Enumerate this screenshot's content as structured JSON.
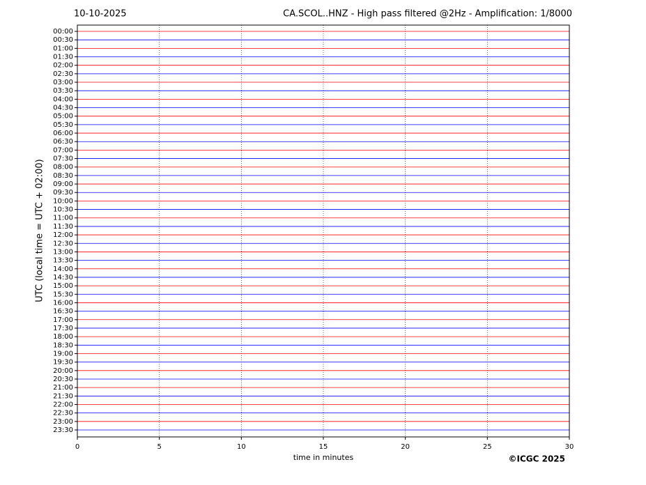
{
  "chart_data": {
    "type": "helicorder",
    "date": "10-10-2025",
    "title": "CA.SCOL..HNZ - High pass filtered @2Hz - Amplification: 1/8000",
    "xlabel": "time in minutes",
    "ylabel": "UTC (local time = UTC + 02:00)",
    "credit": "©ICGC 2025",
    "categories": [
      "00:00",
      "00:30",
      "01:00",
      "01:30",
      "02:00",
      "02:30",
      "03:00",
      "03:30",
      "04:00",
      "04:30",
      "05:00",
      "05:30",
      "06:00",
      "06:30",
      "07:00",
      "07:30",
      "08:00",
      "08:30",
      "09:00",
      "09:30",
      "10:00",
      "10:30",
      "11:00",
      "11:30",
      "12:00",
      "12:30",
      "13:00",
      "13:30",
      "14:00",
      "14:30",
      "15:00",
      "15:30",
      "16:00",
      "16:30",
      "17:00",
      "17:30",
      "18:00",
      "18:30",
      "19:00",
      "19:30",
      "20:00",
      "20:30",
      "21:00",
      "21:30",
      "22:00",
      "22:30",
      "23:00",
      "23:30"
    ],
    "trace_colors": [
      "#ff0000",
      "#0000ff"
    ],
    "xlim": [
      0,
      30
    ],
    "xticks": [
      0,
      5,
      10,
      15,
      20,
      25,
      30
    ],
    "grid": true
  }
}
